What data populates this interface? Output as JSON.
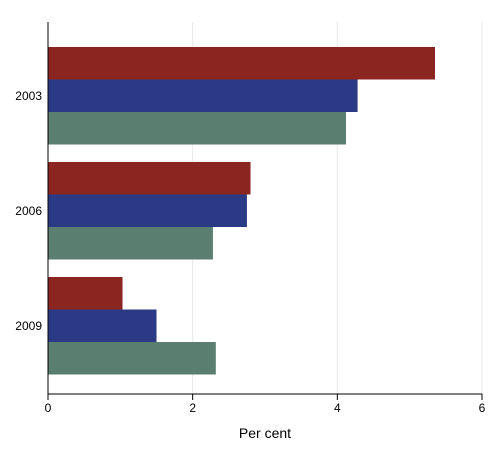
{
  "chart_data": {
    "type": "bar",
    "orientation": "horizontal",
    "categories": [
      "2003",
      "2006",
      "2009"
    ],
    "series": [
      {
        "color": "#8b2520",
        "values": [
          5.35,
          2.8,
          1.03
        ]
      },
      {
        "color": "#2b3a84",
        "values": [
          4.28,
          2.75,
          1.5
        ]
      },
      {
        "color": "#5a7e6f",
        "values": [
          4.12,
          2.28,
          2.32
        ]
      }
    ],
    "xlabel": "Per cent",
    "xlim": [
      0,
      6
    ],
    "xticks": [
      "0",
      "2",
      "4",
      "6"
    ],
    "grid": "vertical"
  }
}
